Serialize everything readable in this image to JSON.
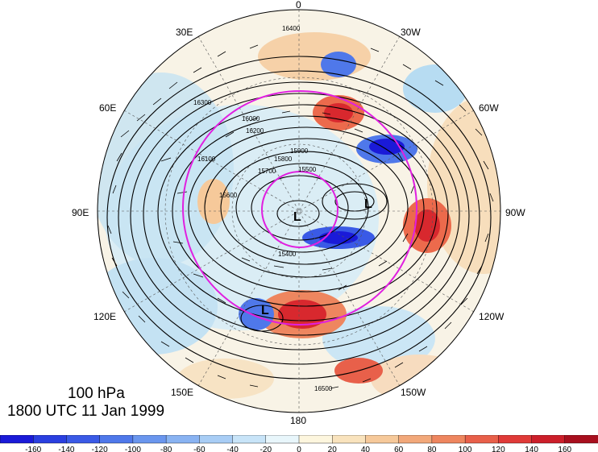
{
  "map": {
    "level": "100 hPa",
    "valid_time": "1800 UTC 11 Jan 1999",
    "longitude_labels": [
      {
        "id": "0",
        "text": "0"
      },
      {
        "id": "30W",
        "text": "30W"
      },
      {
        "id": "60W",
        "text": "60W"
      },
      {
        "id": "90W",
        "text": "90W"
      },
      {
        "id": "120W",
        "text": "120W"
      },
      {
        "id": "150W",
        "text": "150W"
      },
      {
        "id": "180",
        "text": "180"
      },
      {
        "id": "150E",
        "text": "150E"
      },
      {
        "id": "120E",
        "text": "120E"
      },
      {
        "id": "90E",
        "text": "90E"
      },
      {
        "id": "60E",
        "text": "60E"
      },
      {
        "id": "30E",
        "text": "30E"
      }
    ],
    "low_centers": [
      "L",
      "L",
      "L"
    ],
    "contour_labels": [
      "16400",
      "16300",
      "16200",
      "16100",
      "16000",
      "15900",
      "15800",
      "15700",
      "15600",
      "15500",
      "15400",
      "16500"
    ],
    "colors": {
      "positive": "#e8303a",
      "negative": "#2a4fe0",
      "contour": "#000000",
      "circle": "#e020e0"
    }
  },
  "colorbar": {
    "ticks": [
      "-160",
      "-140",
      "-120",
      "-100",
      "-80",
      "-60",
      "-40",
      "-20",
      "0",
      "20",
      "40",
      "60",
      "80",
      "100",
      "120",
      "140",
      "160"
    ],
    "colors": [
      "#1a1ad8",
      "#2a3fe0",
      "#3a5ae6",
      "#4f78ea",
      "#6a96ee",
      "#89b3f2",
      "#a8cdf5",
      "#c8e4f8",
      "#e8f6fb",
      "#fdf6de",
      "#f9e3bd",
      "#f6c99a",
      "#f2a87a",
      "#ee865f",
      "#e8604a",
      "#e03a38",
      "#cc1f2a",
      "#a80f1e"
    ]
  }
}
